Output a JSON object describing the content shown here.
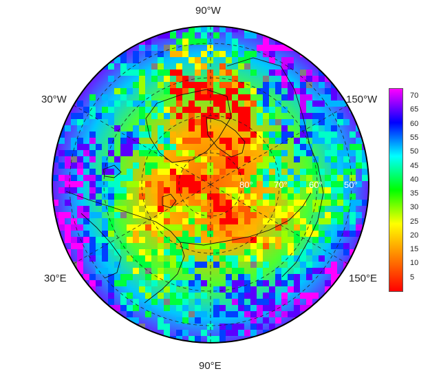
{
  "map": {
    "projection": "polar-stereographic-north",
    "longitude_labels": [
      "90°W",
      "30°W",
      "150°W",
      "30°E",
      "150°E",
      "90°E"
    ],
    "latitude_labels": [
      "80°",
      "70°",
      "60°",
      "50°"
    ],
    "latitude_values": [
      80,
      70,
      60,
      50
    ],
    "gridline_style": "dashed",
    "missing_data_color": "#808080"
  },
  "colorbar": {
    "ticks": [
      "70",
      "65",
      "60",
      "55",
      "50",
      "45",
      "40",
      "35",
      "30",
      "25",
      "20",
      "15",
      "10",
      "5"
    ],
    "min": 0,
    "max": 73,
    "colors": [
      "#ff0000",
      "#ff8000",
      "#ffff00",
      "#00ff00",
      "#00ffff",
      "#0000ff",
      "#ff00ff"
    ]
  }
}
